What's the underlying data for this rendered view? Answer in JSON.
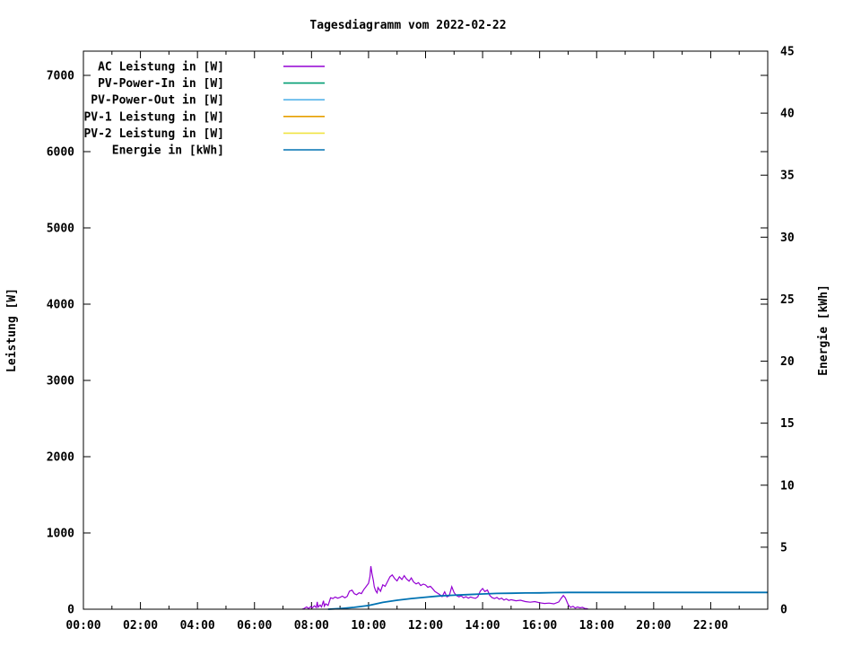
{
  "title": "Tagesdiagramm vom 2022-02-22",
  "colors": {
    "background": "#ffffff",
    "axis": "#000000",
    "ac_leistung": "#9400d3",
    "pv_power_in": "#009e73",
    "pv_power_out": "#56b4e9",
    "pv1_leistung": "#e69f00",
    "pv2_leistung": "#f0e442",
    "energie": "#0072b2"
  },
  "chart_data": {
    "type": "line",
    "title": "Tagesdiagramm vom 2022-02-22",
    "grid": false,
    "legend_position": "top-left-inside",
    "x_axis": {
      "kind": "time-of-day",
      "range_hours": [
        0,
        24
      ],
      "major_ticks": [
        {
          "h": 0,
          "label": "00:00"
        },
        {
          "h": 2,
          "label": "02:00"
        },
        {
          "h": 4,
          "label": "04:00"
        },
        {
          "h": 6,
          "label": "06:00"
        },
        {
          "h": 8,
          "label": "08:00"
        },
        {
          "h": 10,
          "label": "10:00"
        },
        {
          "h": 12,
          "label": "12:00"
        },
        {
          "h": 14,
          "label": "14:00"
        },
        {
          "h": 16,
          "label": "16:00"
        },
        {
          "h": 18,
          "label": "18:00"
        },
        {
          "h": 20,
          "label": "20:00"
        },
        {
          "h": 22,
          "label": "22:00"
        }
      ],
      "minor_ticks_hours": [
        1,
        3,
        5,
        7,
        9,
        11,
        13,
        15,
        17,
        19,
        21,
        23
      ]
    },
    "y_left_axis": {
      "label": "Leistung [W]",
      "ticks": [
        0,
        1000,
        2000,
        3000,
        4000,
        5000,
        6000,
        7000
      ],
      "range": [
        0,
        7320
      ]
    },
    "y_right_axis": {
      "label": "Energie [kWh]",
      "ticks": [
        0,
        5,
        10,
        15,
        20,
        25,
        30,
        35,
        40,
        45
      ],
      "range": [
        0,
        45
      ]
    },
    "series": [
      {
        "name": "AC Leistung in [W]",
        "color": "#9400d3",
        "axis": "left",
        "points": [
          [
            7.67,
            0
          ],
          [
            7.75,
            12
          ],
          [
            7.83,
            30
          ],
          [
            7.9,
            8
          ],
          [
            7.97,
            35
          ],
          [
            8.03,
            18
          ],
          [
            8.1,
            45
          ],
          [
            8.17,
            22
          ],
          [
            8.2,
            95
          ],
          [
            8.23,
            28
          ],
          [
            8.3,
            55
          ],
          [
            8.35,
            30
          ],
          [
            8.42,
            110
          ],
          [
            8.45,
            40
          ],
          [
            8.5,
            70
          ],
          [
            8.58,
            50
          ],
          [
            8.67,
            150
          ],
          [
            8.75,
            140
          ],
          [
            8.83,
            160
          ],
          [
            8.92,
            145
          ],
          [
            9.0,
            155
          ],
          [
            9.08,
            172
          ],
          [
            9.17,
            150
          ],
          [
            9.25,
            168
          ],
          [
            9.33,
            235
          ],
          [
            9.42,
            250
          ],
          [
            9.5,
            205
          ],
          [
            9.58,
            190
          ],
          [
            9.67,
            215
          ],
          [
            9.75,
            205
          ],
          [
            9.83,
            255
          ],
          [
            9.92,
            300
          ],
          [
            10.0,
            340
          ],
          [
            10.05,
            430
          ],
          [
            10.08,
            565
          ],
          [
            10.12,
            470
          ],
          [
            10.17,
            375
          ],
          [
            10.2,
            295
          ],
          [
            10.25,
            240
          ],
          [
            10.3,
            215
          ],
          [
            10.33,
            285
          ],
          [
            10.42,
            235
          ],
          [
            10.5,
            320
          ],
          [
            10.58,
            300
          ],
          [
            10.67,
            365
          ],
          [
            10.75,
            425
          ],
          [
            10.83,
            450
          ],
          [
            10.92,
            400
          ],
          [
            11.0,
            372
          ],
          [
            11.08,
            425
          ],
          [
            11.17,
            390
          ],
          [
            11.25,
            440
          ],
          [
            11.33,
            398
          ],
          [
            11.42,
            368
          ],
          [
            11.5,
            410
          ],
          [
            11.58,
            358
          ],
          [
            11.67,
            332
          ],
          [
            11.75,
            348
          ],
          [
            11.83,
            310
          ],
          [
            11.92,
            330
          ],
          [
            12.0,
            318
          ],
          [
            12.08,
            288
          ],
          [
            12.17,
            300
          ],
          [
            12.25,
            268
          ],
          [
            12.33,
            232
          ],
          [
            12.42,
            210
          ],
          [
            12.5,
            192
          ],
          [
            12.58,
            165
          ],
          [
            12.67,
            228
          ],
          [
            12.75,
            162
          ],
          [
            12.83,
            175
          ],
          [
            12.92,
            295
          ],
          [
            13.0,
            218
          ],
          [
            13.08,
            180
          ],
          [
            13.17,
            162
          ],
          [
            13.25,
            175
          ],
          [
            13.33,
            150
          ],
          [
            13.42,
            165
          ],
          [
            13.5,
            145
          ],
          [
            13.58,
            160
          ],
          [
            13.67,
            150
          ],
          [
            13.75,
            142
          ],
          [
            13.83,
            162
          ],
          [
            13.92,
            238
          ],
          [
            14.0,
            272
          ],
          [
            14.08,
            232
          ],
          [
            14.17,
            252
          ],
          [
            14.25,
            182
          ],
          [
            14.33,
            152
          ],
          [
            14.42,
            140
          ],
          [
            14.5,
            155
          ],
          [
            14.58,
            132
          ],
          [
            14.67,
            145
          ],
          [
            14.75,
            120
          ],
          [
            14.83,
            135
          ],
          [
            14.92,
            115
          ],
          [
            15.0,
            125
          ],
          [
            15.17,
            110
          ],
          [
            15.33,
            118
          ],
          [
            15.5,
            100
          ],
          [
            15.67,
            92
          ],
          [
            15.83,
            100
          ],
          [
            16.0,
            85
          ],
          [
            16.17,
            75
          ],
          [
            16.33,
            80
          ],
          [
            16.5,
            70
          ],
          [
            16.67,
            95
          ],
          [
            16.75,
            140
          ],
          [
            16.83,
            180
          ],
          [
            16.9,
            150
          ],
          [
            17.0,
            60
          ],
          [
            17.08,
            25
          ],
          [
            17.17,
            38
          ],
          [
            17.25,
            15
          ],
          [
            17.33,
            30
          ],
          [
            17.42,
            18
          ],
          [
            17.5,
            25
          ],
          [
            17.58,
            10
          ],
          [
            17.67,
            6
          ],
          [
            17.7,
            0
          ]
        ]
      },
      {
        "name": "PV-Power-In in [W]",
        "color": "#009e73",
        "axis": "left",
        "points": []
      },
      {
        "name": "PV-Power-Out in [W]",
        "color": "#56b4e9",
        "axis": "left",
        "points": []
      },
      {
        "name": "PV-1 Leistung in [W]",
        "color": "#e69f00",
        "axis": "left",
        "points": []
      },
      {
        "name": "PV-2 Leistung in [W]",
        "color": "#f0e442",
        "axis": "left",
        "points": []
      },
      {
        "name": "Energie in [kWh]",
        "color": "#0072b2",
        "axis": "right",
        "points": [
          [
            8.58,
            0
          ],
          [
            9.0,
            0.05
          ],
          [
            9.5,
            0.15
          ],
          [
            10.0,
            0.3
          ],
          [
            10.25,
            0.43
          ],
          [
            10.5,
            0.55
          ],
          [
            11.0,
            0.72
          ],
          [
            11.5,
            0.86
          ],
          [
            12.0,
            0.97
          ],
          [
            12.5,
            1.07
          ],
          [
            13.0,
            1.13
          ],
          [
            13.5,
            1.18
          ],
          [
            14.0,
            1.23
          ],
          [
            14.5,
            1.27
          ],
          [
            15.0,
            1.29
          ],
          [
            15.5,
            1.31
          ],
          [
            16.0,
            1.32
          ],
          [
            16.5,
            1.34
          ],
          [
            17.0,
            1.35
          ],
          [
            24.0,
            1.35
          ]
        ]
      }
    ]
  },
  "legend": {
    "entries": [
      {
        "label": "AC Leistung in [W]",
        "color": "#9400d3"
      },
      {
        "label": "PV-Power-In in [W]",
        "color": "#009e73"
      },
      {
        "label": "PV-Power-Out in [W]",
        "color": "#56b4e9"
      },
      {
        "label": "PV-1 Leistung in [W]",
        "color": "#e69f00"
      },
      {
        "label": "PV-2 Leistung in [W]",
        "color": "#f0e442"
      },
      {
        "label": "Energie in [kWh]",
        "color": "#0072b2"
      }
    ]
  }
}
